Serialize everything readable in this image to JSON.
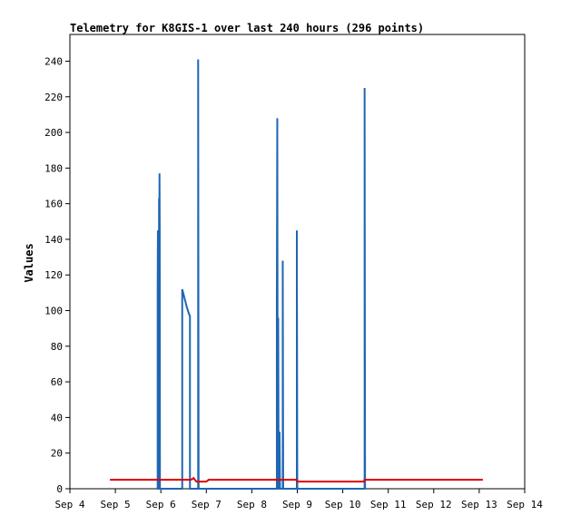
{
  "chart_data": {
    "type": "line",
    "title": "Telemetry for K8GIS-1 over last 240 hours (296 points)",
    "xlabel": "",
    "ylabel": "Values",
    "x_tick_labels": [
      "Sep 4",
      "Sep 5",
      "Sep 6",
      "Sep 7",
      "Sep 8",
      "Sep 9",
      "Sep 10",
      "Sep 11",
      "Sep 12",
      "Sep 13",
      "Sep 14"
    ],
    "xlim": [
      4,
      14
    ],
    "ylim": [
      0,
      255
    ],
    "y_ticks": [
      0,
      20,
      40,
      60,
      80,
      100,
      120,
      140,
      160,
      180,
      200,
      220,
      240
    ],
    "grid": false,
    "legend": "none",
    "series": [
      {
        "color": "#1f66b4",
        "kind": "spikes",
        "points": [
          [
            5.93,
            0
          ],
          [
            5.93,
            112
          ],
          [
            5.935,
            145
          ],
          [
            5.94,
            0
          ],
          [
            5.96,
            0
          ],
          [
            5.96,
            163
          ],
          [
            5.965,
            110
          ],
          [
            5.97,
            177
          ],
          [
            5.975,
            145
          ],
          [
            5.98,
            0
          ],
          [
            6.47,
            0
          ],
          [
            6.47,
            112
          ],
          [
            6.52,
            107
          ],
          [
            6.57,
            102
          ],
          [
            6.62,
            98
          ],
          [
            6.64,
            97
          ],
          [
            6.64,
            0
          ],
          [
            6.82,
            0
          ],
          [
            6.82,
            241
          ],
          [
            6.83,
            0
          ],
          [
            8.55,
            0
          ],
          [
            8.55,
            104
          ],
          [
            8.56,
            208
          ],
          [
            8.57,
            0
          ],
          [
            8.58,
            0
          ],
          [
            8.58,
            96
          ],
          [
            8.59,
            0
          ],
          [
            8.61,
            0
          ],
          [
            8.61,
            32
          ],
          [
            8.62,
            0
          ],
          [
            8.68,
            0
          ],
          [
            8.68,
            128
          ],
          [
            8.69,
            0
          ],
          [
            8.99,
            0
          ],
          [
            8.99,
            145
          ],
          [
            9.0,
            0
          ],
          [
            10.48,
            0
          ],
          [
            10.48,
            225
          ],
          [
            10.49,
            0
          ]
        ]
      },
      {
        "color": "#e00000",
        "kind": "line",
        "points": [
          [
            4.88,
            5
          ],
          [
            5.93,
            5
          ],
          [
            6.66,
            5
          ],
          [
            6.72,
            6
          ],
          [
            6.78,
            4
          ],
          [
            6.85,
            4
          ],
          [
            7.0,
            4
          ],
          [
            7.05,
            5
          ],
          [
            8.99,
            5
          ],
          [
            9.0,
            4
          ],
          [
            10.46,
            4
          ],
          [
            10.48,
            5
          ],
          [
            13.08,
            5
          ]
        ]
      }
    ]
  }
}
